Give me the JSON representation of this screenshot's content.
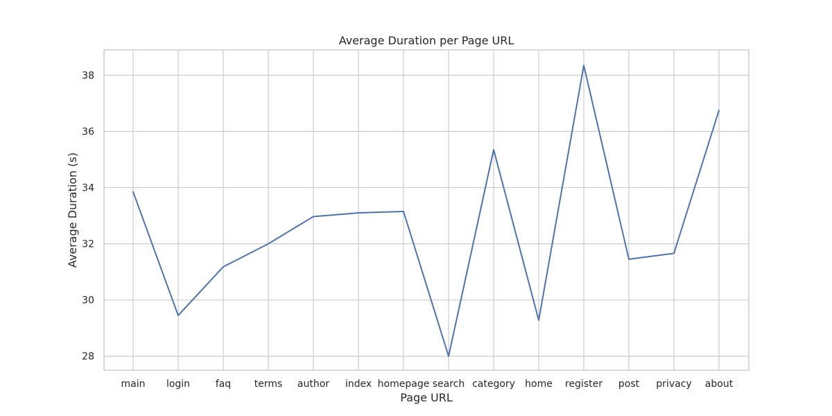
{
  "chart_data": {
    "type": "line",
    "title": "Average Duration per Page URL",
    "xlabel": "Page URL",
    "ylabel": "Average Duration (s)",
    "categories": [
      "main",
      "login",
      "faq",
      "terms",
      "author",
      "index",
      "homepage",
      "search",
      "category",
      "home",
      "register",
      "post",
      "privacy",
      "about"
    ],
    "series": [
      {
        "values": [
          33.85,
          29.45,
          31.18,
          32.0,
          32.97,
          33.1,
          33.15,
          28.0,
          35.35,
          29.28,
          38.35,
          31.45,
          31.66,
          36.75
        ]
      }
    ],
    "ylim": [
      27.5,
      38.9
    ],
    "yticks": [
      28,
      30,
      32,
      34,
      36,
      38
    ],
    "grid": true,
    "colors": {
      "line": "#4c72b0",
      "grid": "#cccccc"
    }
  }
}
